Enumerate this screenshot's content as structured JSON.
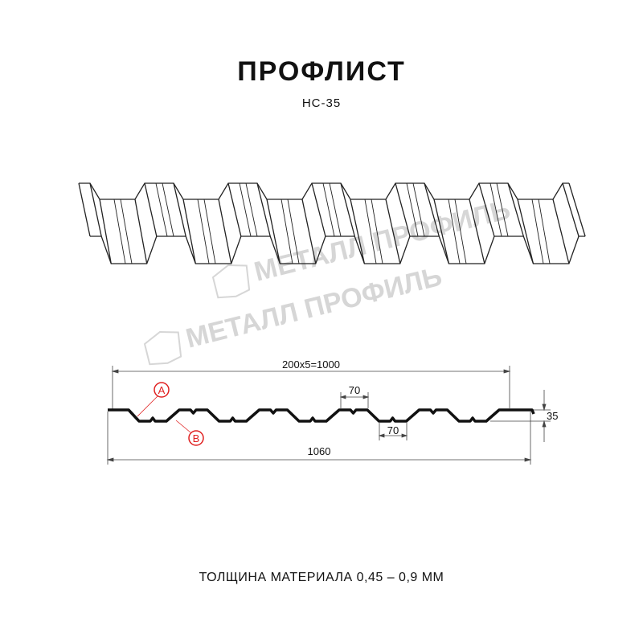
{
  "title": "ПРОФЛИСТ",
  "subtitle": "НС-35",
  "watermark": "МЕТАЛЛ ПРОФИЛЬ",
  "dimensions": {
    "overall_pitch": "200x5=1000",
    "top_width": "70",
    "bottom_width": "70",
    "height": "35",
    "total_width": "1060"
  },
  "callouts": {
    "a": "A",
    "b": "B"
  },
  "footer": "ТОЛЩИНА МАТЕРИАЛА 0,45 – 0,9 ММ",
  "colors": {
    "line": "#111111",
    "callout": "#e02020",
    "watermark": "#d6d6d6"
  }
}
